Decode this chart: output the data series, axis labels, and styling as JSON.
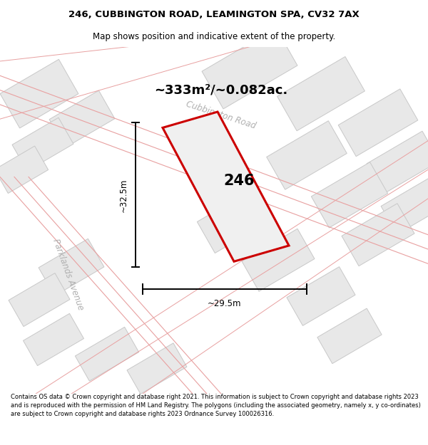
{
  "title_line1": "246, CUBBINGTON ROAD, LEAMINGTON SPA, CV32 7AX",
  "title_line2": "Map shows position and indicative extent of the property.",
  "area_text": "~333m²/~0.082ac.",
  "property_number": "246",
  "dim_width": "~29.5m",
  "dim_height": "~32.5m",
  "road_label1": "Cubbington Road",
  "road_label2": "Parklands Avenue",
  "footer_text": "Contains OS data © Crown copyright and database right 2021. This information is subject to Crown copyright and database rights 2023 and is reproduced with the permission of HM Land Registry. The polygons (including the associated geometry, namely x, y co-ordinates) are subject to Crown copyright and database rights 2023 Ordnance Survey 100026316.",
  "boundary_color": "#cc0000",
  "road_line_color": "#e8a0a0",
  "plot_fill": "#e8e8e8",
  "plot_edge": "#c8c8c8",
  "map_bg": "#f0f0f0",
  "prop_fill": "#f0f0f0"
}
